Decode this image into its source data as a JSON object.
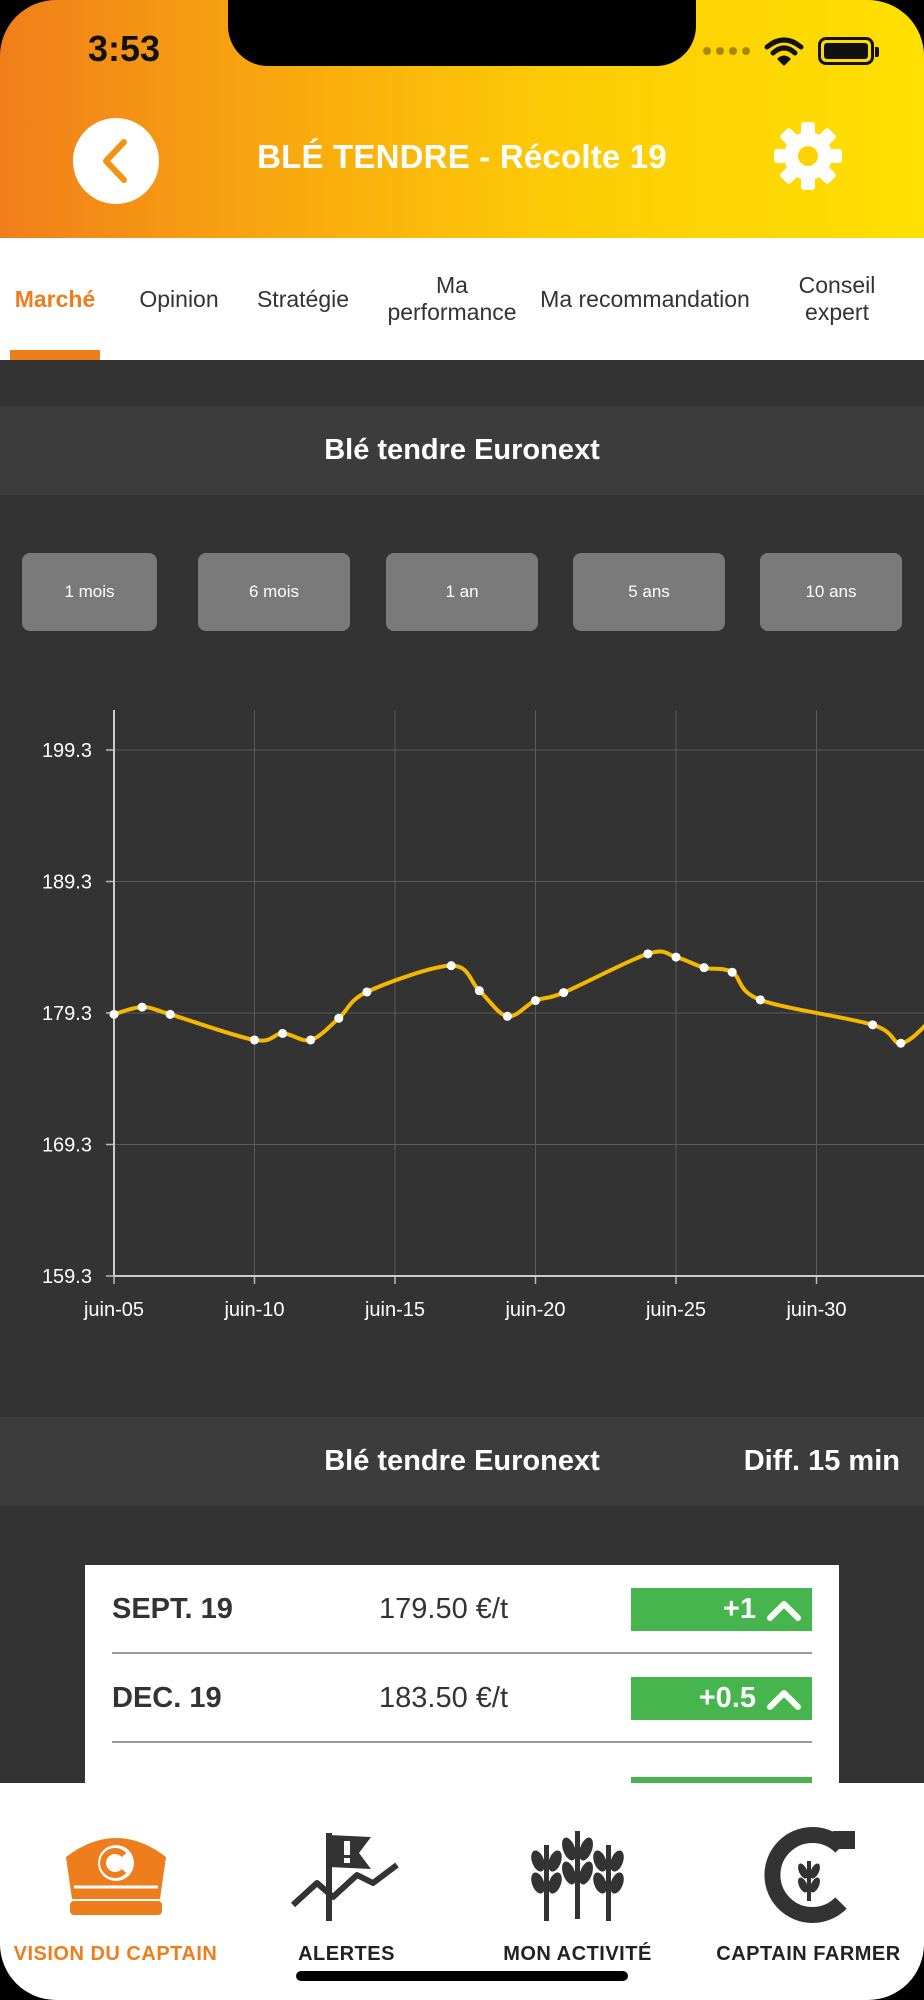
{
  "status_bar": {
    "time": "3:53"
  },
  "header": {
    "title": "BLÉ TENDRE - Récolte 19"
  },
  "tabs": [
    {
      "label": "Marché",
      "active": true
    },
    {
      "label": "Opinion"
    },
    {
      "label": "Stratégie"
    },
    {
      "label": "Ma performance"
    },
    {
      "label": "Ma recommandation"
    },
    {
      "label": "Conseil expert"
    }
  ],
  "chart_section": {
    "title": "Blé tendre Euronext",
    "periods": [
      "1 mois",
      "6 mois",
      "1 an",
      "5 ans",
      "10 ans"
    ]
  },
  "chart_data": {
    "type": "line",
    "title": "",
    "xlabel": "",
    "ylabel": "",
    "x_ticks": [
      "juin-05",
      "juin-10",
      "juin-15",
      "juin-20",
      "juin-25",
      "juin-30"
    ],
    "y_ticks": [
      159.3,
      169.3,
      179.3,
      189.3,
      199.3
    ],
    "ylim": [
      159.3,
      199.3
    ],
    "x": [
      "06-05",
      "06-06",
      "06-07",
      "06-10",
      "06-11",
      "06-12",
      "06-13",
      "06-14",
      "06-17",
      "06-18",
      "06-19",
      "06-20",
      "06-21",
      "06-24",
      "06-25",
      "06-26",
      "06-27",
      "06-28",
      "07-02",
      "07-03",
      "07-04"
    ],
    "series": [
      {
        "values": [
          179.2,
          179.75,
          179.2,
          177.25,
          177.75,
          177.25,
          178.9,
          180.9,
          182.9,
          181.0,
          179.05,
          180.25,
          180.85,
          183.8,
          183.55,
          182.75,
          182.4,
          180.3,
          178.4,
          177.0,
          178.6
        ]
      }
    ],
    "line_color": "#F5B800",
    "marker_color": "#FFFFFF",
    "grid": true
  },
  "quotes_section": {
    "title": "Blé tendre Euronext",
    "diff_label": "Diff. 15 min",
    "rows": [
      {
        "month": "SEPT. 19",
        "price": "179.50 €/t",
        "change": "+1"
      },
      {
        "month": "DEC. 19",
        "price": "183.50 €/t",
        "change": "+0.5"
      }
    ]
  },
  "bottom_nav": [
    {
      "label": "VISION DU CAPTAIN",
      "icon": "captain-hat-icon",
      "active": true
    },
    {
      "label": "ALERTES",
      "icon": "alert-flag-icon"
    },
    {
      "label": "MON ACTIVITÉ",
      "icon": "wheat-icon"
    },
    {
      "label": "CAPTAIN FARMER",
      "icon": "captain-farmer-logo-icon"
    }
  ],
  "colors": {
    "accent": "#EE7D1D",
    "header_gradient_start": "#F07E1B",
    "header_gradient_end": "#FFE000",
    "positive": "#47B54E",
    "background": "#333333"
  }
}
